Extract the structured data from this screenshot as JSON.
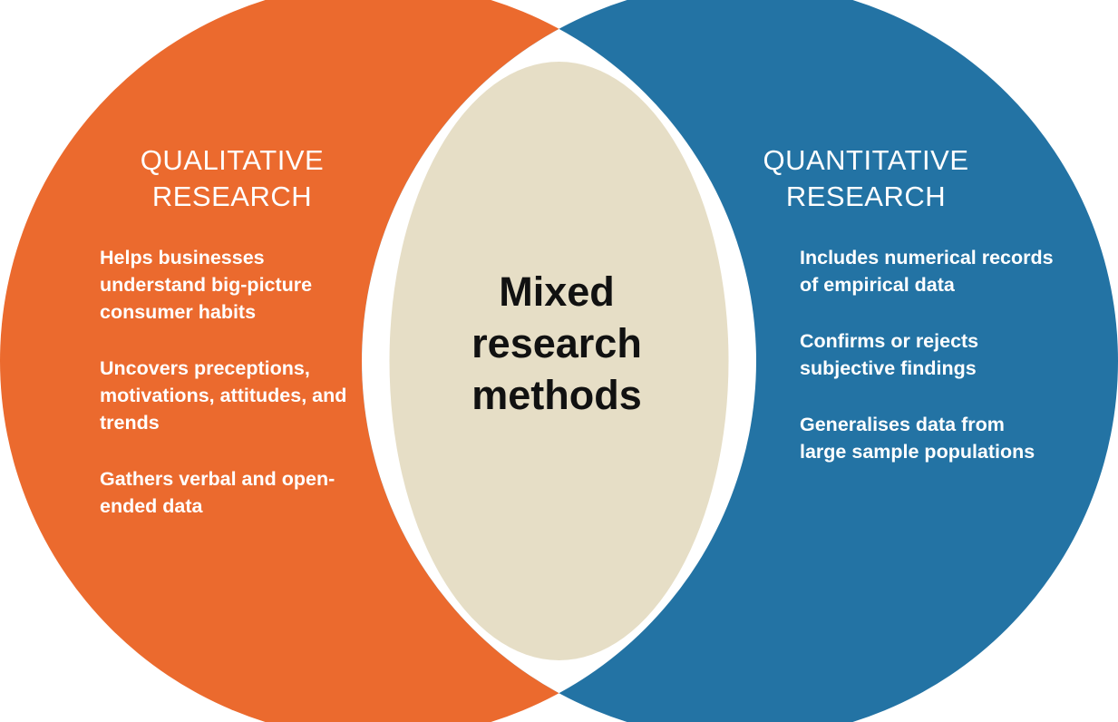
{
  "colors": {
    "qualitative": "#EB6A2E",
    "quantitative": "#2373A4",
    "overlap": "#E6DEC6",
    "gap": "#FFFFFF",
    "text_light": "#FFFFFF",
    "text_dark": "#111111"
  },
  "qualitative": {
    "title_lines": [
      "QUALITATIVE",
      "RESEARCH"
    ],
    "points": [
      "Helps businesses understand big-picture consumer habits",
      "Uncovers preceptions, motivations, attitudes, and trends",
      "Gathers verbal and open-ended data"
    ]
  },
  "quantitative": {
    "title_lines": [
      "QUANTITATIVE",
      "RESEARCH"
    ],
    "points": [
      "Includes numerical records of empirical data",
      "Confirms or rejects subjective findings",
      "Generalises data from large sample populations"
    ]
  },
  "overlap": {
    "label_lines": [
      "Mixed",
      "research",
      "methods"
    ]
  }
}
